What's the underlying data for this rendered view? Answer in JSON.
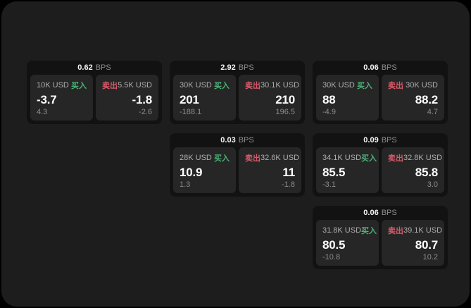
{
  "labels": {
    "bps": "BPS",
    "buy": "买入",
    "sell": "卖出"
  },
  "colors": {
    "buy": "#4bb277",
    "sell": "#d85a6a",
    "surface": "#1d1d1d",
    "card": "#121212",
    "panel": "#262626"
  },
  "cards": [
    {
      "bps": "0.62",
      "row": 1,
      "col": 1,
      "buy": {
        "amount": "10K USD",
        "price": "-3.7",
        "delta": "4.3"
      },
      "sell": {
        "amount": "5.5K USD",
        "price": "-1.8",
        "delta": "-2.6"
      }
    },
    {
      "bps": "2.92",
      "row": 1,
      "col": 2,
      "buy": {
        "amount": "30K USD",
        "price": "201",
        "delta": "-188.1"
      },
      "sell": {
        "amount": "30.1K USD",
        "price": "210",
        "delta": "196.5"
      }
    },
    {
      "bps": "0.06",
      "row": 1,
      "col": 3,
      "buy": {
        "amount": "30K USD",
        "price": "88",
        "delta": "-4.9"
      },
      "sell": {
        "amount": "30K USD",
        "price": "88.2",
        "delta": "4.7"
      }
    },
    {
      "bps": "0.03",
      "row": 2,
      "col": 2,
      "buy": {
        "amount": "28K USD",
        "price": "10.9",
        "delta": "1.3"
      },
      "sell": {
        "amount": "32.6K USD",
        "price": "11",
        "delta": "-1.8"
      }
    },
    {
      "bps": "0.09",
      "row": 2,
      "col": 3,
      "buy": {
        "amount": "34.1K USD",
        "price": "85.5",
        "delta": "-3.1"
      },
      "sell": {
        "amount": "32.8K USD",
        "price": "85.8",
        "delta": "3.0"
      }
    },
    {
      "bps": "0.06",
      "row": 3,
      "col": 3,
      "buy": {
        "amount": "31.8K USD",
        "price": "80.5",
        "delta": "-10.8"
      },
      "sell": {
        "amount": "39.1K USD",
        "price": "80.7",
        "delta": "10.2"
      }
    }
  ]
}
